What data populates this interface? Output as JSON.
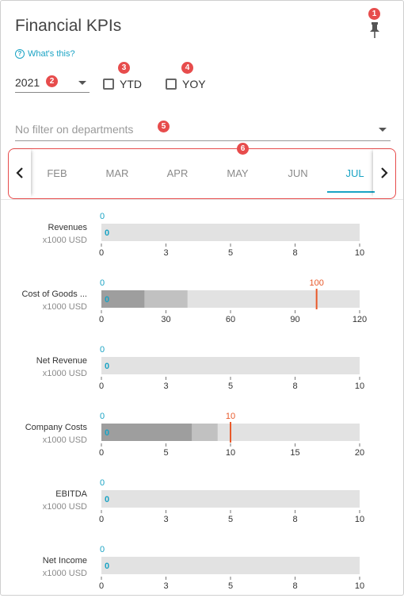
{
  "header": {
    "title": "Financial KPIs",
    "whats_this": "What's this?"
  },
  "badges": [
    "1",
    "2",
    "3",
    "4",
    "5",
    "6"
  ],
  "filters": {
    "year": "2021",
    "ytd_label": "YTD",
    "yoy_label": "YOY",
    "ytd_checked": false,
    "yoy_checked": false,
    "department_placeholder": "No filter on departments"
  },
  "months": {
    "items": [
      "FEB",
      "MAR",
      "APR",
      "MAY",
      "JUN",
      "JUL"
    ],
    "active": "JUL"
  },
  "colors": {
    "accent": "#1aa3c4",
    "target": "#e8592a",
    "badge": "#e74c4c",
    "track": "#e2e2e2",
    "band_dark": "#9e9e9e",
    "band_mid": "#c1c1c1"
  },
  "chart_data": [
    {
      "type": "bullet",
      "label": "Revenues",
      "unit": "x1000 USD",
      "actual": 0,
      "actual_label": "0",
      "top_value_label": "0",
      "target": null,
      "target_label": "",
      "bands": [],
      "range": [
        0,
        10
      ],
      "ticks": [
        "0",
        "3",
        "5",
        "8",
        "10"
      ]
    },
    {
      "type": "bullet",
      "label": "Cost of Goods ...",
      "unit": "x1000 USD",
      "actual": 0,
      "actual_label": "0",
      "top_value_label": "0",
      "target": 100,
      "target_label": "100",
      "bands": [
        20,
        40
      ],
      "range": [
        0,
        120
      ],
      "ticks": [
        "0",
        "30",
        "60",
        "90",
        "120"
      ]
    },
    {
      "type": "bullet",
      "label": "Net Revenue",
      "unit": "x1000 USD",
      "actual": 0,
      "actual_label": "0",
      "top_value_label": "0",
      "target": null,
      "target_label": "",
      "bands": [],
      "range": [
        0,
        10
      ],
      "ticks": [
        "0",
        "3",
        "5",
        "8",
        "10"
      ]
    },
    {
      "type": "bullet",
      "label": "Company Costs",
      "unit": "x1000 USD",
      "actual": 0,
      "actual_label": "0",
      "top_value_label": "0",
      "target": 10,
      "target_label": "10",
      "bands": [
        7,
        9
      ],
      "range": [
        0,
        20
      ],
      "ticks": [
        "0",
        "5",
        "10",
        "15",
        "20"
      ]
    },
    {
      "type": "bullet",
      "label": "EBITDA",
      "unit": "x1000 USD",
      "actual": 0,
      "actual_label": "0",
      "top_value_label": "0",
      "target": null,
      "target_label": "",
      "bands": [],
      "range": [
        0,
        10
      ],
      "ticks": [
        "0",
        "3",
        "5",
        "8",
        "10"
      ]
    },
    {
      "type": "bullet",
      "label": "Net Income",
      "unit": "x1000 USD",
      "actual": 0,
      "actual_label": "0",
      "top_value_label": "0",
      "target": null,
      "target_label": "",
      "bands": [],
      "range": [
        0,
        10
      ],
      "ticks": [
        "0",
        "3",
        "5",
        "8",
        "10"
      ]
    }
  ]
}
